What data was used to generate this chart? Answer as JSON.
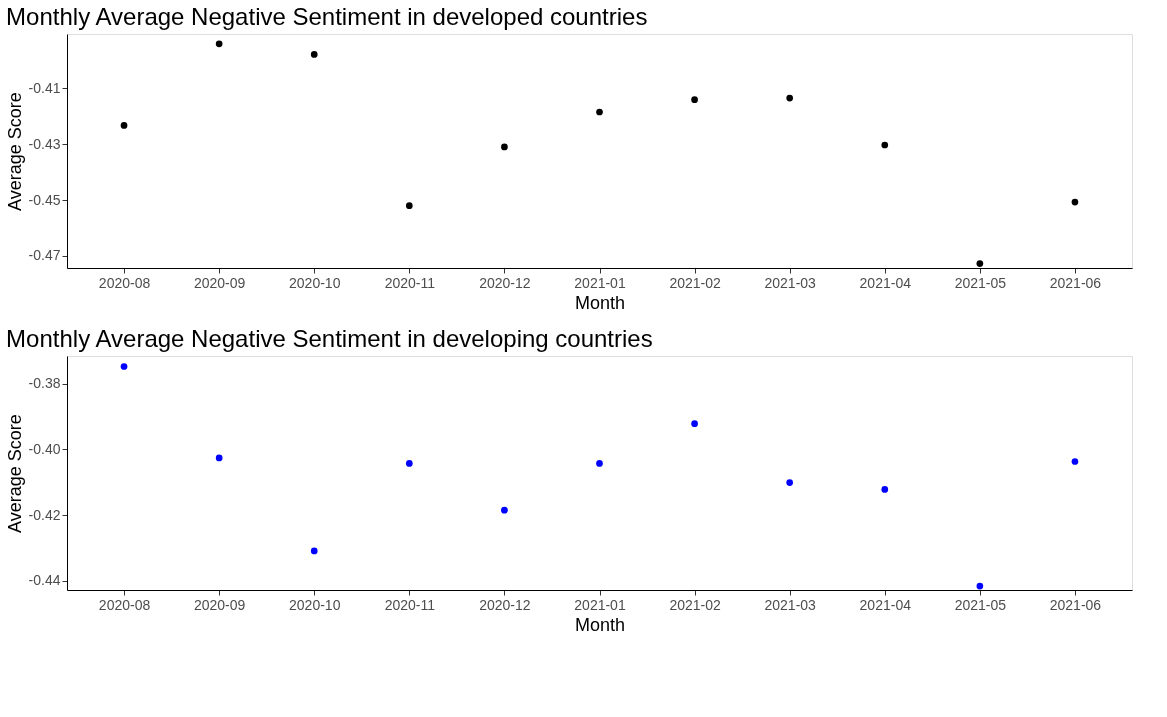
{
  "chart_data": [
    {
      "type": "scatter",
      "title": "Monthly Average Negative Sentiment in developed countries",
      "xlabel": "Month",
      "ylabel": "Average Score",
      "categories": [
        "2020-08",
        "2020-09",
        "2020-10",
        "2020-11",
        "2020-12",
        "2021-01",
        "2021-02",
        "2021-03",
        "2021-04",
        "2021-05",
        "2021-06"
      ],
      "series": [
        {
          "color": "#000000",
          "values": [
            -0.4233,
            -0.3941,
            -0.3979,
            -0.452,
            -0.431,
            -0.4185,
            -0.4141,
            -0.4135,
            -0.4303,
            -0.4727,
            -0.4507
          ]
        }
      ],
      "ylim": [
        -0.4743,
        -0.3906
      ],
      "yticks": [
        {
          "value": -0.47,
          "label": "-0.47"
        },
        {
          "value": -0.45,
          "label": "-0.45"
        },
        {
          "value": -0.43,
          "label": "-0.43"
        },
        {
          "value": -0.41,
          "label": "-0.41"
        }
      ],
      "grid": false
    },
    {
      "type": "scatter",
      "title": "Monthly Average Negative Sentiment in developing countries",
      "xlabel": "Month",
      "ylabel": "Average Score",
      "categories": [
        "2020-08",
        "2020-09",
        "2020-10",
        "2020-11",
        "2020-12",
        "2021-01",
        "2021-02",
        "2021-03",
        "2021-04",
        "2021-05",
        "2021-06"
      ],
      "series": [
        {
          "color": "#0000ff",
          "values": [
            -0.3748,
            -0.4026,
            -0.4309,
            -0.4043,
            -0.4185,
            -0.4043,
            -0.3922,
            -0.4101,
            -0.4122,
            -0.4416,
            -0.4037
          ]
        }
      ],
      "ylim": [
        -0.4428,
        -0.3716
      ],
      "yticks": [
        {
          "value": -0.44,
          "label": "-0.44"
        },
        {
          "value": -0.42,
          "label": "-0.42"
        },
        {
          "value": -0.4,
          "label": "-0.40"
        },
        {
          "value": -0.38,
          "label": "-0.38"
        }
      ],
      "grid": false
    }
  ]
}
